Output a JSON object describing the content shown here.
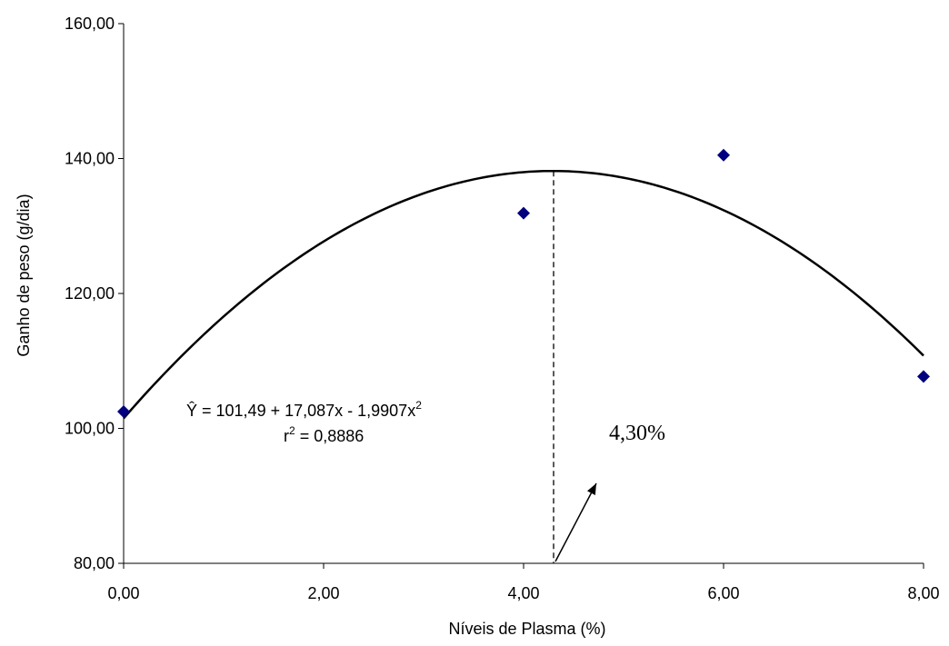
{
  "chart_data": {
    "type": "scatter",
    "xlabel": "Níveis de Plasma (%)",
    "ylabel": "Ganho de peso (g/dia)",
    "xlim": [
      0,
      8
    ],
    "ylim": [
      80,
      160
    ],
    "x_ticks": [
      "0,00",
      "2,00",
      "4,00",
      "6,00",
      "8,00"
    ],
    "y_ticks": [
      "80,00",
      "100,00",
      "120,00",
      "140,00",
      "160,00"
    ],
    "grid": false,
    "points": [
      {
        "x": 0,
        "y": 102.5
      },
      {
        "x": 4,
        "y": 131.9
      },
      {
        "x": 6,
        "y": 140.5
      },
      {
        "x": 8,
        "y": 107.7
      }
    ],
    "marker_color": "#00007f",
    "trendline": {
      "type": "quadratic",
      "a": 101.49,
      "b": 17.087,
      "c": -1.9907,
      "x_range": [
        0,
        8
      ]
    },
    "equation": {
      "prefix": "Ŷ = 101,49 + 17,087x - 1,9907x",
      "sup": "2"
    },
    "r2": {
      "prefix": "r",
      "sup": "2",
      "suffix": " = 0,8886"
    },
    "optimum": {
      "x": 4.3,
      "label": "4,30%"
    }
  }
}
